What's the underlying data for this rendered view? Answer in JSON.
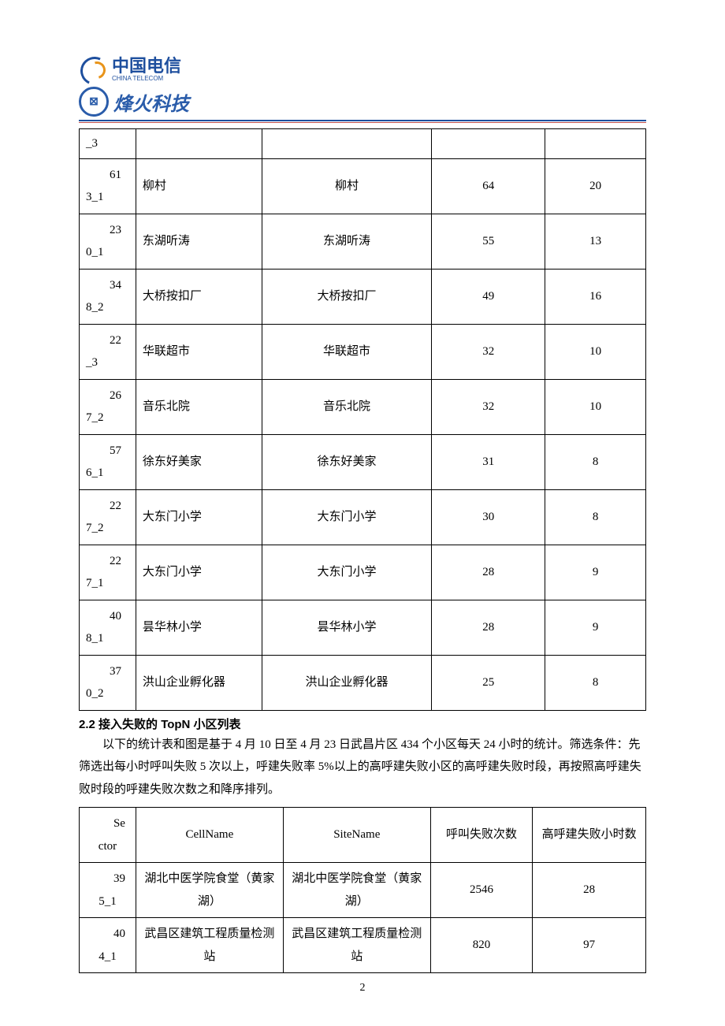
{
  "logo": {
    "ct_cn": "中国电信",
    "ct_en": "CHINA TELECOM",
    "fh": "烽火科技",
    "fh_icon": "⊠"
  },
  "table1": {
    "rows": [
      {
        "id_top": "",
        "id_bot": "_3",
        "cell": "",
        "site": "",
        "v1": "",
        "v2": ""
      },
      {
        "id_top": "61",
        "id_bot": "3_1",
        "cell": "柳村",
        "site": "柳村",
        "v1": "64",
        "v2": "20"
      },
      {
        "id_top": "23",
        "id_bot": "0_1",
        "cell": "东湖听涛",
        "site": "东湖听涛",
        "v1": "55",
        "v2": "13"
      },
      {
        "id_top": "34",
        "id_bot": "8_2",
        "cell": "大桥按扣厂",
        "site": "大桥按扣厂",
        "v1": "49",
        "v2": "16"
      },
      {
        "id_top": "22",
        "id_bot": "_3",
        "cell": "华联超市",
        "site": "华联超市",
        "v1": "32",
        "v2": "10"
      },
      {
        "id_top": "26",
        "id_bot": "7_2",
        "cell": "音乐北院",
        "site": "音乐北院",
        "v1": "32",
        "v2": "10"
      },
      {
        "id_top": "57",
        "id_bot": "6_1",
        "cell": "徐东好美家",
        "site": "徐东好美家",
        "v1": "31",
        "v2": "8"
      },
      {
        "id_top": "22",
        "id_bot": "7_2",
        "cell": "大东门小学",
        "site": "大东门小学",
        "v1": "30",
        "v2": "8"
      },
      {
        "id_top": "22",
        "id_bot": "7_1",
        "cell": "大东门小学",
        "site": "大东门小学",
        "v1": "28",
        "v2": "9"
      },
      {
        "id_top": "40",
        "id_bot": "8_1",
        "cell": "昙华林小学",
        "site": "昙华林小学",
        "v1": "28",
        "v2": "9"
      },
      {
        "id_top": "37",
        "id_bot": "0_2",
        "cell": "洪山企业孵化器",
        "site": "洪山企业孵化器",
        "v1": "25",
        "v2": "8"
      }
    ]
  },
  "section": {
    "heading": "2.2 接入失败的 TopN 小区列表",
    "para": "以下的统计表和图是基于 4 月 10 日至 4 月 23 日武昌片区 434 个小区每天 24 小时的统计。筛选条件：先筛选出每小时呼叫失败 5 次以上，呼建失败率 5%以上的高呼建失败小区的高呼建失败时段，再按照高呼建失败时段的呼建失败次数之和降序排列。"
  },
  "table2": {
    "headers": {
      "h1": "Sector",
      "h2": "CellName",
      "h3": "SiteName",
      "h4": "呼叫失败次数",
      "h5": "高呼建失败小时数"
    },
    "rows": [
      {
        "id_top": "39",
        "id_bot": "5_1",
        "cell": "湖北中医学院食堂（黄家湖）",
        "site": "湖北中医学院食堂（黄家湖）",
        "v1": "2546",
        "v2": "28"
      },
      {
        "id_top": "40",
        "id_bot": "4_1",
        "cell": "武昌区建筑工程质量检测站",
        "site": "武昌区建筑工程质量检测站",
        "v1": "820",
        "v2": "97"
      }
    ]
  },
  "pagenum": "2"
}
